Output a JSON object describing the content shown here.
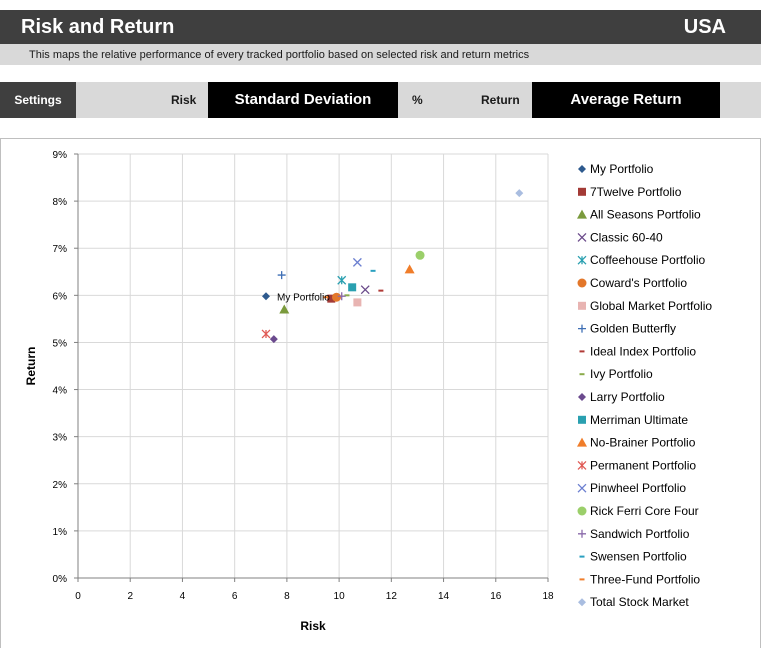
{
  "header": {
    "title": "Risk and Return",
    "country": "USA",
    "subtitle": "This maps the relative performance of every tracked portfolio based on selected risk and return metrics"
  },
  "settings": {
    "settings_label": "Settings",
    "risk_label": "Risk",
    "risk_value": "Standard Deviation",
    "unit_label": "%",
    "return_label": "Return",
    "return_value": "Average Return"
  },
  "chart_data": {
    "type": "scatter",
    "xlabel": "Risk",
    "ylabel": "Return",
    "xlim": [
      0,
      18
    ],
    "ylim": [
      0,
      9
    ],
    "x_ticks": [
      0,
      2,
      4,
      6,
      8,
      10,
      12,
      14,
      16,
      18
    ],
    "y_ticks": [
      "0%",
      "1%",
      "2%",
      "3%",
      "4%",
      "5%",
      "6%",
      "7%",
      "8%",
      "9%"
    ],
    "grid": true,
    "legend_position": "right",
    "annotation": "My Portfolio",
    "series": [
      {
        "name": "My Portfolio",
        "marker": "diamond",
        "color": "#2e5a8e",
        "x": 7.2,
        "y": 5.98
      },
      {
        "name": "7Twelve Portfolio",
        "marker": "square",
        "color": "#a33a36",
        "x": 9.7,
        "y": 5.93
      },
      {
        "name": "All Seasons Portfolio",
        "marker": "triangle",
        "color": "#7a9a3c",
        "x": 7.9,
        "y": 5.7
      },
      {
        "name": "Classic 60-40",
        "marker": "x",
        "color": "#6a4a8a",
        "x": 11.0,
        "y": 6.12
      },
      {
        "name": "Coffeehouse Portfolio",
        "marker": "asterisk",
        "color": "#2aa0b0",
        "x": 10.1,
        "y": 6.32
      },
      {
        "name": "Coward's Portfolio",
        "marker": "circle",
        "color": "#e3772a",
        "x": 9.9,
        "y": 5.96
      },
      {
        "name": "Global Market Portfolio",
        "marker": "square",
        "color": "#e8b4b2",
        "x": 10.7,
        "y": 5.85
      },
      {
        "name": "Golden Butterfly",
        "marker": "plus",
        "color": "#3f6fb5",
        "x": 7.8,
        "y": 6.43
      },
      {
        "name": "Ideal Index Portfolio",
        "marker": "dash",
        "color": "#b03a36",
        "x": 11.6,
        "y": 6.1
      },
      {
        "name": "Ivy Portfolio",
        "marker": "dash",
        "color": "#8aab4a",
        "x": 10.3,
        "y": 6.0
      },
      {
        "name": "Larry Portfolio",
        "marker": "diamond",
        "color": "#6b4a8e",
        "x": 7.5,
        "y": 5.07
      },
      {
        "name": "Merriman Ultimate",
        "marker": "square",
        "color": "#2aa0b0",
        "x": 10.5,
        "y": 6.17
      },
      {
        "name": "No-Brainer Portfolio",
        "marker": "triangle",
        "color": "#f07d2a",
        "x": 12.7,
        "y": 6.55
      },
      {
        "name": "Permanent Portfolio",
        "marker": "asterisk",
        "color": "#e05a55",
        "x": 7.2,
        "y": 5.18
      },
      {
        "name": "Pinwheel Portfolio",
        "marker": "x",
        "color": "#6b7fd0",
        "x": 10.7,
        "y": 6.7
      },
      {
        "name": "Rick Ferri Core Four",
        "marker": "circle",
        "color": "#9bcf6a",
        "x": 13.1,
        "y": 6.85
      },
      {
        "name": "Sandwich Portfolio",
        "marker": "plus",
        "color": "#8a6aaa",
        "x": 10.1,
        "y": 5.98
      },
      {
        "name": "Swensen Portfolio",
        "marker": "dash",
        "color": "#2aa0c0",
        "x": 11.3,
        "y": 6.52
      },
      {
        "name": "Three-Fund Portfolio",
        "marker": "dash",
        "color": "#f07d2a",
        "x": 9.5,
        "y": 5.96
      },
      {
        "name": "Total Stock Market",
        "marker": "diamond",
        "color": "#a9bde0",
        "x": 16.9,
        "y": 8.17
      }
    ]
  }
}
